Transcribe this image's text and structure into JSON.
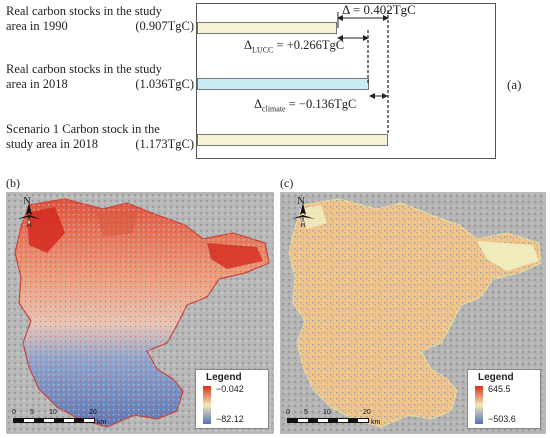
{
  "panel_a": {
    "tag": "(a)",
    "rows": [
      {
        "line1": "Real carbon stocks in the study",
        "line2": "area in 1990",
        "value": "(0.907TgC)"
      },
      {
        "line1": "Real carbon stocks in the study",
        "line2": "area in 2018",
        "value": "(1.036TgC)"
      },
      {
        "line1": "Scenario 1 Carbon stock in the",
        "line2": "study area in 2018",
        "value": "(1.173TgC)"
      }
    ],
    "delta_total": "Δ = 0.402TgC",
    "delta_lucc": "Δ",
    "delta_lucc_sub": "LUCC",
    "delta_lucc_val": "= +0.266TgC",
    "delta_climate": "Δ",
    "delta_climate_sub": "climate",
    "delta_climate_val": "= −0.136TgC",
    "colors": {
      "bar_yellow": "#f7f4d6",
      "bar_blue": "#c8ecf3",
      "border": "#777777"
    }
  },
  "panel_b": {
    "tag": "(b)",
    "north": "N",
    "legend_title": "Legend",
    "legend_max": "−0.042",
    "legend_min": "−82.12",
    "scale_ticks": [
      "0",
      "5",
      "10",
      "20"
    ],
    "scale_unit": "km",
    "colors": {
      "high": "#d7301f",
      "mid": "#f3e7b2",
      "low": "#4f74b8"
    }
  },
  "panel_c": {
    "tag": "(c)",
    "north": "N",
    "legend_title": "Legend",
    "legend_max": "645.5",
    "legend_min": "−503.6",
    "scale_ticks": [
      "0",
      "5",
      "10",
      "20"
    ],
    "scale_unit": "km",
    "colors": {
      "high": "#d7301f",
      "mid": "#f3e7b2",
      "low": "#4f74b8"
    }
  }
}
